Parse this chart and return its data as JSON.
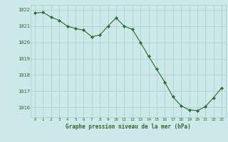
{
  "x": [
    0,
    1,
    2,
    3,
    4,
    5,
    6,
    7,
    8,
    9,
    10,
    11,
    12,
    13,
    14,
    15,
    16,
    17,
    18,
    19,
    20,
    21,
    22,
    23
  ],
  "y": [
    1021.8,
    1021.85,
    1021.55,
    1021.35,
    1021.0,
    1020.85,
    1020.75,
    1020.35,
    1020.45,
    1021.0,
    1021.5,
    1021.0,
    1020.8,
    1020.0,
    1019.15,
    1018.35,
    1017.55,
    1016.65,
    1016.1,
    1015.85,
    1015.8,
    1016.05,
    1016.6,
    1017.2
  ],
  "line_color": "#2d6a2d",
  "marker_color": "#2d6a2d",
  "bg_color": "#cce8e8",
  "grid_color": "#aacccc",
  "text_color": "#2d6a2d",
  "xlabel": "Graphe pression niveau de la mer (hPa)",
  "ylim": [
    1015.4,
    1022.3
  ],
  "yticks": [
    1016,
    1017,
    1018,
    1019,
    1020,
    1021,
    1022
  ],
  "xticks": [
    0,
    1,
    2,
    3,
    4,
    5,
    6,
    7,
    8,
    9,
    10,
    11,
    12,
    13,
    14,
    15,
    16,
    17,
    18,
    19,
    20,
    21,
    22,
    23
  ]
}
